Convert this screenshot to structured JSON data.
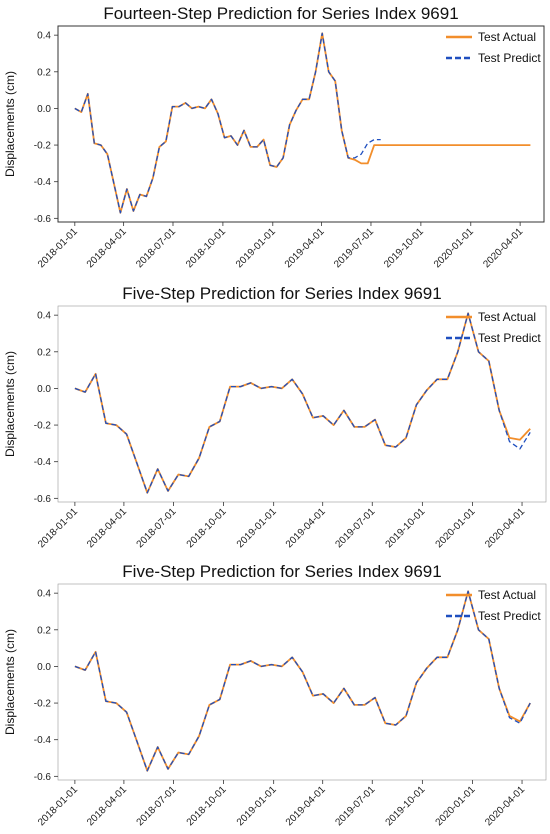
{
  "chart_data": [
    {
      "type": "line",
      "title": "Fourteen-Step Prediction for Series Index 9691",
      "ylabel": "Displacements (cm)",
      "xlabel": "",
      "ylim": [
        -0.62,
        0.45
      ],
      "xlim": [
        "2017-12-01",
        "2020-05-15"
      ],
      "yticks": [
        "-0.6",
        "-0.4",
        "-0.2",
        "0.0",
        "0.2",
        "0.4"
      ],
      "xticks": [
        "2018-01-01",
        "2018-04-01",
        "2018-07-01",
        "2018-10-01",
        "2019-01-01",
        "2019-04-01",
        "2019-07-01",
        "2019-10-01",
        "2020-01-01",
        "2020-04-01"
      ],
      "legend": {
        "position": "top-right",
        "entries": [
          "Test Actual",
          "Test Predict"
        ]
      },
      "grid": false,
      "series": [
        {
          "name": "Test Actual",
          "color": "#F28E2B",
          "style": "solid",
          "x": [
            "2018-01-01",
            "2018-01-13",
            "2018-01-25",
            "2018-02-06",
            "2018-02-18",
            "2018-03-02",
            "2018-03-14",
            "2018-03-26",
            "2018-04-07",
            "2018-04-19",
            "2018-05-01",
            "2018-05-13",
            "2018-05-25",
            "2018-06-06",
            "2018-06-18",
            "2018-06-30",
            "2018-07-12",
            "2018-07-24",
            "2018-08-05",
            "2018-08-17",
            "2018-08-29",
            "2018-09-10",
            "2018-09-22",
            "2018-10-04",
            "2018-10-16",
            "2018-10-28",
            "2018-11-09",
            "2018-11-21",
            "2018-12-03",
            "2018-12-15",
            "2018-12-27",
            "2019-01-08",
            "2019-01-20",
            "2019-02-01",
            "2019-02-13",
            "2019-02-25",
            "2019-03-09",
            "2019-03-21",
            "2019-04-02",
            "2019-04-14",
            "2019-04-26",
            "2019-05-08",
            "2019-05-20",
            "2019-06-01",
            "2019-06-13",
            "2019-06-25",
            "2019-07-07",
            "2019-07-19",
            "2019-07-31",
            "2019-08-12",
            "2019-08-24",
            "2019-09-05",
            "2019-09-17",
            "2019-09-29",
            "2019-10-11",
            "2019-10-23",
            "2019-11-04",
            "2019-11-16",
            "2019-11-28",
            "2019-12-10",
            "2019-12-22",
            "2020-01-03",
            "2020-01-15",
            "2020-01-27",
            "2020-02-08",
            "2020-02-20",
            "2020-03-03",
            "2020-03-15",
            "2020-03-27",
            "2020-04-08",
            "2020-04-20"
          ],
          "y": [
            0.0,
            -0.02,
            0.08,
            -0.19,
            -0.2,
            -0.25,
            -0.41,
            -0.57,
            -0.44,
            -0.56,
            -0.47,
            -0.48,
            -0.38,
            -0.21,
            -0.18,
            0.01,
            0.01,
            0.03,
            0.0,
            0.01,
            0.0,
            0.05,
            -0.03,
            -0.16,
            -0.15,
            -0.2,
            -0.12,
            -0.21,
            -0.21,
            -0.17,
            -0.31,
            -0.32,
            -0.27,
            -0.09,
            -0.01,
            0.05,
            0.05,
            0.2,
            0.41,
            0.2,
            0.15,
            -0.12,
            -0.27,
            -0.28,
            -0.3,
            -0.3,
            -0.2,
            -0.2,
            -0.2,
            -0.2,
            -0.2,
            -0.2,
            -0.2,
            -0.2,
            -0.2,
            -0.2,
            -0.2,
            -0.2,
            -0.2,
            -0.2,
            -0.2,
            -0.2,
            -0.2,
            -0.2,
            -0.2,
            -0.2,
            -0.2,
            -0.2,
            -0.2,
            -0.2,
            -0.2
          ]
        },
        {
          "name": "Test Predict",
          "color": "#1F4FBF",
          "style": "dashed",
          "x": [
            "2018-01-01",
            "2018-01-13",
            "2018-01-25",
            "2018-02-06",
            "2018-02-18",
            "2018-03-02",
            "2018-03-14",
            "2018-03-26",
            "2018-04-07",
            "2018-04-19",
            "2018-05-01",
            "2018-05-13",
            "2018-05-25",
            "2018-06-06",
            "2018-06-18",
            "2018-06-30",
            "2018-07-12",
            "2018-07-24",
            "2018-08-05",
            "2018-08-17",
            "2018-08-29",
            "2018-09-10",
            "2018-09-22",
            "2018-10-04",
            "2018-10-16",
            "2018-10-28",
            "2018-11-09",
            "2018-11-21",
            "2018-12-03",
            "2018-12-15",
            "2018-12-27",
            "2019-01-08",
            "2019-01-20",
            "2019-02-01",
            "2019-02-13",
            "2019-02-25",
            "2019-03-09",
            "2019-03-21",
            "2019-04-02",
            "2019-04-14",
            "2019-04-26",
            "2019-05-08",
            "2019-05-20",
            "2019-06-01",
            "2019-06-13",
            "2019-06-25",
            "2019-07-07",
            "2019-07-19"
          ],
          "y": [
            0.0,
            -0.02,
            0.08,
            -0.19,
            -0.2,
            -0.25,
            -0.41,
            -0.57,
            -0.44,
            -0.56,
            -0.47,
            -0.48,
            -0.38,
            -0.21,
            -0.18,
            0.01,
            0.01,
            0.03,
            0.0,
            0.01,
            0.0,
            0.05,
            -0.03,
            -0.16,
            -0.15,
            -0.2,
            -0.12,
            -0.21,
            -0.21,
            -0.17,
            -0.31,
            -0.32,
            -0.27,
            -0.09,
            -0.01,
            0.05,
            0.05,
            0.2,
            0.41,
            0.2,
            0.15,
            -0.12,
            -0.27,
            -0.27,
            -0.25,
            -0.19,
            -0.17,
            -0.17
          ]
        }
      ]
    },
    {
      "type": "line",
      "title": "Five-Step Prediction for Series Index 9691",
      "ylabel": "Displacements (cm)",
      "xlabel": "",
      "ylim": [
        -0.62,
        0.45
      ],
      "xlim": [
        "2017-12-01",
        "2020-05-15"
      ],
      "yticks": [
        "-0.6",
        "-0.4",
        "-0.2",
        "0.0",
        "0.2",
        "0.4"
      ],
      "xticks": [
        "2018-01-01",
        "2018-04-01",
        "2018-07-01",
        "2018-10-01",
        "2019-01-01",
        "2019-04-01",
        "2019-07-01",
        "2019-10-01",
        "2020-01-01",
        "2020-04-01"
      ],
      "legend": {
        "position": "top-right",
        "entries": [
          "Test Actual",
          "Test Predict"
        ]
      },
      "grid": false,
      "series": [
        {
          "name": "Test Actual",
          "color": "#F28E2B",
          "style": "solid",
          "x": [
            "2018-01-01",
            "2018-01-20",
            "2018-02-08",
            "2018-02-27",
            "2018-03-18",
            "2018-04-06",
            "2018-04-25",
            "2018-05-14",
            "2018-06-02",
            "2018-06-21",
            "2018-07-10",
            "2018-07-29",
            "2018-08-17",
            "2018-09-05",
            "2018-09-24",
            "2018-10-13",
            "2018-11-01",
            "2018-11-20",
            "2018-12-09",
            "2018-12-28",
            "2019-01-16",
            "2019-02-04",
            "2019-02-23",
            "2019-03-14",
            "2019-04-02",
            "2019-04-21",
            "2019-05-10",
            "2019-05-29",
            "2019-06-17",
            "2019-07-06",
            "2019-07-25",
            "2019-08-13",
            "2019-09-01",
            "2019-09-20",
            "2019-10-09",
            "2019-10-28",
            "2019-11-16",
            "2019-12-05",
            "2019-12-24",
            "2020-01-12",
            "2020-01-31",
            "2020-02-19",
            "2020-03-09",
            "2020-03-28",
            "2020-04-16"
          ],
          "y": [
            0.0,
            -0.02,
            0.08,
            -0.19,
            -0.2,
            -0.25,
            -0.41,
            -0.57,
            -0.44,
            -0.56,
            -0.47,
            -0.48,
            -0.38,
            -0.21,
            -0.18,
            0.01,
            0.01,
            0.03,
            0.0,
            0.01,
            0.0,
            0.05,
            -0.03,
            -0.16,
            -0.15,
            -0.2,
            -0.12,
            -0.21,
            -0.21,
            -0.17,
            -0.31,
            -0.32,
            -0.27,
            -0.09,
            -0.01,
            0.05,
            0.05,
            0.2,
            0.41,
            0.2,
            0.15,
            -0.12,
            -0.27,
            -0.28,
            -0.22
          ]
        },
        {
          "name": "Test Predict",
          "color": "#1F4FBF",
          "style": "dashed",
          "x": [
            "2018-01-01",
            "2018-01-20",
            "2018-02-08",
            "2018-02-27",
            "2018-03-18",
            "2018-04-06",
            "2018-04-25",
            "2018-05-14",
            "2018-06-02",
            "2018-06-21",
            "2018-07-10",
            "2018-07-29",
            "2018-08-17",
            "2018-09-05",
            "2018-09-24",
            "2018-10-13",
            "2018-11-01",
            "2018-11-20",
            "2018-12-09",
            "2018-12-28",
            "2019-01-16",
            "2019-02-04",
            "2019-02-23",
            "2019-03-14",
            "2019-04-02",
            "2019-04-21",
            "2019-05-10",
            "2019-05-29",
            "2019-06-17",
            "2019-07-06",
            "2019-07-25",
            "2019-08-13",
            "2019-09-01",
            "2019-09-20",
            "2019-10-09",
            "2019-10-28",
            "2019-11-16",
            "2019-12-05",
            "2019-12-24",
            "2020-01-12",
            "2020-01-31",
            "2020-02-19",
            "2020-03-09",
            "2020-03-28",
            "2020-04-16"
          ],
          "y": [
            0.0,
            -0.02,
            0.08,
            -0.19,
            -0.2,
            -0.25,
            -0.41,
            -0.57,
            -0.44,
            -0.56,
            -0.47,
            -0.48,
            -0.38,
            -0.21,
            -0.18,
            0.01,
            0.01,
            0.03,
            0.0,
            0.01,
            0.0,
            0.05,
            -0.03,
            -0.16,
            -0.15,
            -0.2,
            -0.12,
            -0.21,
            -0.21,
            -0.17,
            -0.31,
            -0.32,
            -0.27,
            -0.09,
            -0.01,
            0.05,
            0.05,
            0.2,
            0.41,
            0.2,
            0.15,
            -0.12,
            -0.29,
            -0.33,
            -0.24
          ]
        }
      ]
    },
    {
      "type": "line",
      "title": "Five-Step Prediction for Series Index 9691",
      "ylabel": "Displacements (cm)",
      "xlabel": "",
      "ylim": [
        -0.62,
        0.45
      ],
      "xlim": [
        "2017-12-01",
        "2020-05-15"
      ],
      "yticks": [
        "-0.6",
        "-0.4",
        "-0.2",
        "0.0",
        "0.2",
        "0.4"
      ],
      "xticks": [
        "2018-01-01",
        "2018-04-01",
        "2018-07-01",
        "2018-10-01",
        "2019-01-01",
        "2019-04-01",
        "2019-07-01",
        "2019-10-01",
        "2020-01-01",
        "2020-04-01"
      ],
      "legend": {
        "position": "top-right",
        "entries": [
          "Test Actual",
          "Test Predict"
        ]
      },
      "grid": false,
      "series": [
        {
          "name": "Test Actual",
          "color": "#F28E2B",
          "style": "solid",
          "x": [
            "2018-01-01",
            "2018-01-20",
            "2018-02-08",
            "2018-02-27",
            "2018-03-18",
            "2018-04-06",
            "2018-04-25",
            "2018-05-14",
            "2018-06-02",
            "2018-06-21",
            "2018-07-10",
            "2018-07-29",
            "2018-08-17",
            "2018-09-05",
            "2018-09-24",
            "2018-10-13",
            "2018-11-01",
            "2018-11-20",
            "2018-12-09",
            "2018-12-28",
            "2019-01-16",
            "2019-02-04",
            "2019-02-23",
            "2019-03-14",
            "2019-04-02",
            "2019-04-21",
            "2019-05-10",
            "2019-05-29",
            "2019-06-17",
            "2019-07-06",
            "2019-07-25",
            "2019-08-13",
            "2019-09-01",
            "2019-09-20",
            "2019-10-09",
            "2019-10-28",
            "2019-11-16",
            "2019-12-05",
            "2019-12-24",
            "2020-01-12",
            "2020-01-31",
            "2020-02-19",
            "2020-03-09",
            "2020-03-28",
            "2020-04-16"
          ],
          "y": [
            0.0,
            -0.02,
            0.08,
            -0.19,
            -0.2,
            -0.25,
            -0.41,
            -0.57,
            -0.44,
            -0.56,
            -0.47,
            -0.48,
            -0.38,
            -0.21,
            -0.18,
            0.01,
            0.01,
            0.03,
            0.0,
            0.01,
            0.0,
            0.05,
            -0.03,
            -0.16,
            -0.15,
            -0.2,
            -0.12,
            -0.21,
            -0.21,
            -0.17,
            -0.31,
            -0.32,
            -0.27,
            -0.09,
            -0.01,
            0.05,
            0.05,
            0.2,
            0.41,
            0.2,
            0.15,
            -0.12,
            -0.27,
            -0.3,
            -0.2
          ]
        },
        {
          "name": "Test Predict",
          "color": "#1F4FBF",
          "style": "dashed",
          "x": [
            "2018-01-01",
            "2018-01-20",
            "2018-02-08",
            "2018-02-27",
            "2018-03-18",
            "2018-04-06",
            "2018-04-25",
            "2018-05-14",
            "2018-06-02",
            "2018-06-21",
            "2018-07-10",
            "2018-07-29",
            "2018-08-17",
            "2018-09-05",
            "2018-09-24",
            "2018-10-13",
            "2018-11-01",
            "2018-11-20",
            "2018-12-09",
            "2018-12-28",
            "2019-01-16",
            "2019-02-04",
            "2019-02-23",
            "2019-03-14",
            "2019-04-02",
            "2019-04-21",
            "2019-05-10",
            "2019-05-29",
            "2019-06-17",
            "2019-07-06",
            "2019-07-25",
            "2019-08-13",
            "2019-09-01",
            "2019-09-20",
            "2019-10-09",
            "2019-10-28",
            "2019-11-16",
            "2019-12-05",
            "2019-12-24",
            "2020-01-12",
            "2020-01-31",
            "2020-02-19",
            "2020-03-09",
            "2020-03-28",
            "2020-04-16"
          ],
          "y": [
            0.0,
            -0.02,
            0.08,
            -0.19,
            -0.2,
            -0.25,
            -0.41,
            -0.57,
            -0.44,
            -0.56,
            -0.47,
            -0.48,
            -0.38,
            -0.21,
            -0.18,
            0.01,
            0.01,
            0.03,
            0.0,
            0.01,
            0.0,
            0.05,
            -0.03,
            -0.16,
            -0.15,
            -0.2,
            -0.12,
            -0.21,
            -0.21,
            -0.17,
            -0.31,
            -0.32,
            -0.27,
            -0.09,
            -0.01,
            0.05,
            0.05,
            0.2,
            0.41,
            0.2,
            0.15,
            -0.12,
            -0.28,
            -0.31,
            -0.2
          ]
        }
      ]
    }
  ]
}
